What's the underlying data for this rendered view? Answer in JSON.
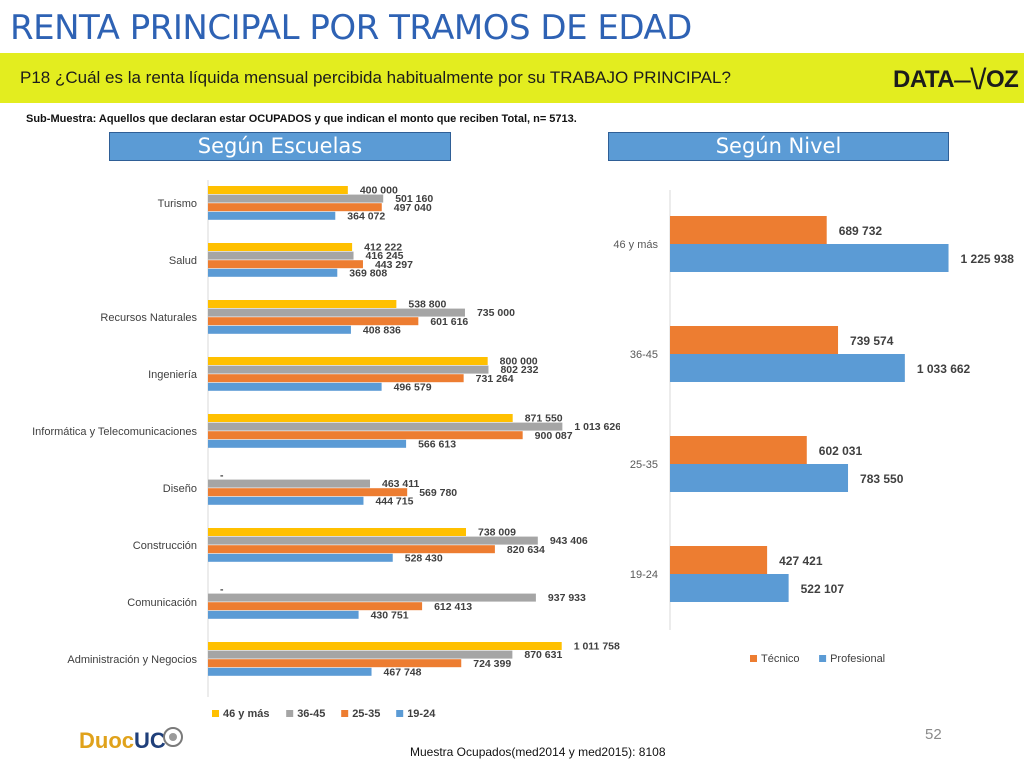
{
  "header": {
    "title": "RENTA PRINCIPAL POR TRAMOS DE EDAD",
    "question": "P18 ¿Cuál es la renta líquida mensual percibida habitualmente por su TRABAJO PRINCIPAL?",
    "logo_left": "DATA",
    "logo_right": "OZ"
  },
  "subsample": "Sub-Muestra: Aquellos que declaran estar OCUPADOS y que indican el monto que reciben Total, n= 5713.",
  "sections": {
    "left": "Según Escuelas",
    "right": "Según Nivel"
  },
  "footer": {
    "note": "Muestra Ocupados(med2014 y med2015): 8108",
    "page_number": "52",
    "brand_left": "Duoc",
    "brand_right": "UC"
  },
  "chart_data": [
    {
      "type": "bar",
      "orientation": "horizontal",
      "categories": [
        "Turismo",
        "Salud",
        "Recursos Naturales",
        "Ingeniería",
        "Informática y Telecomunicaciones",
        "Diseño",
        "Construcción",
        "Comunicación",
        "Administración y Negocios"
      ],
      "series": [
        {
          "name": "46 y más",
          "color": "#ffc000",
          "values": [
            400000,
            412222,
            538800,
            800000,
            871550,
            null,
            738009,
            null,
            1011758
          ],
          "labels": [
            "400 000",
            "412 222",
            "538 800",
            "800 000",
            "871 550",
            "-",
            "738 009",
            "-",
            "1 011 758"
          ]
        },
        {
          "name": "36-45",
          "color": "#a5a5a5",
          "values": [
            501160,
            416245,
            735000,
            802232,
            1013626,
            463411,
            943406,
            937933,
            870631
          ],
          "labels": [
            "501 160",
            "416 245",
            "735 000",
            "802 232",
            "1 013 626",
            "463 411",
            "943 406",
            "937 933",
            "870 631"
          ]
        },
        {
          "name": "25-35",
          "color": "#ed7d31",
          "values": [
            497040,
            443297,
            601616,
            731264,
            900087,
            569780,
            820634,
            612413,
            724399
          ],
          "labels": [
            "497 040",
            "443 297",
            "601 616",
            "731 264",
            "900 087",
            "569 780",
            "820 634",
            "612 413",
            "724 399"
          ]
        },
        {
          "name": "19-24",
          "color": "#5b9bd5",
          "values": [
            364072,
            369808,
            408836,
            496579,
            566613,
            444715,
            528430,
            430751,
            467748
          ],
          "labels": [
            "364 072",
            "369 808",
            "408 836",
            "496 579",
            "566 613",
            "444 715",
            "528 430",
            "430 751",
            "467 748"
          ]
        }
      ],
      "legend_position": "bottom-left"
    },
    {
      "type": "bar",
      "orientation": "horizontal",
      "categories": [
        "46 y más",
        "36-45",
        "25-35",
        "19-24"
      ],
      "series": [
        {
          "name": "Técnico",
          "color": "#ed7d31",
          "values": [
            689732,
            739574,
            602031,
            427421
          ],
          "labels": [
            "689 732",
            "739 574",
            "602 031",
            "427 421"
          ]
        },
        {
          "name": "Profesional",
          "color": "#5b9bd5",
          "values": [
            1225938,
            1033662,
            783550,
            522107
          ],
          "labels": [
            "1 225 938",
            "1 033 662",
            "783 550",
            "522 107"
          ]
        }
      ],
      "legend_position": "bottom"
    }
  ]
}
